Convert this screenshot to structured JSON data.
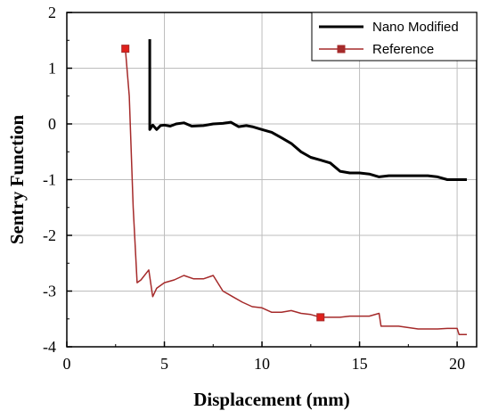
{
  "chart_data": {
    "type": "line",
    "xlabel": "Displacement (mm)",
    "ylabel": "Sentry Function",
    "xlim": [
      0,
      21
    ],
    "ylim": [
      -4,
      2
    ],
    "x_ticks": [
      "0",
      "5",
      "10",
      "15",
      "20"
    ],
    "y_ticks": [
      "2",
      "1",
      "0",
      "-1",
      "-2",
      "-3",
      "-4"
    ],
    "grid": true,
    "legend_position": "top-right",
    "series": [
      {
        "name": "Nano Modified",
        "color": "#000000",
        "x": [
          4.25,
          4.25,
          4.4,
          4.6,
          4.8,
          5.0,
          5.3,
          5.6,
          6.0,
          6.4,
          7.0,
          7.5,
          8.0,
          8.4,
          8.8,
          9.2,
          9.5,
          10.0,
          10.5,
          11.0,
          11.5,
          12.0,
          12.5,
          13.0,
          13.5,
          14.0,
          14.5,
          15.0,
          15.5,
          16.0,
          16.5,
          17.0,
          17.5,
          18.0,
          18.5,
          19.0,
          19.5,
          20.0,
          20.5
        ],
        "y": [
          1.52,
          -0.1,
          -0.02,
          -0.1,
          -0.03,
          -0.02,
          -0.04,
          0.0,
          0.02,
          -0.04,
          -0.03,
          0.0,
          0.01,
          0.03,
          -0.05,
          -0.03,
          -0.05,
          -0.1,
          -0.15,
          -0.25,
          -0.35,
          -0.5,
          -0.6,
          -0.65,
          -0.7,
          -0.85,
          -0.88,
          -0.88,
          -0.9,
          -0.95,
          -0.93,
          -0.93,
          -0.93,
          -0.93,
          -0.93,
          -0.95,
          -1.0,
          -1.0,
          -1.0
        ]
      },
      {
        "name": "Reference",
        "color": "#a52a2a",
        "marker": "square",
        "x": [
          3.0,
          3.2,
          3.4,
          3.6,
          3.8,
          4.2,
          4.4,
          4.6,
          5.0,
          5.5,
          6.0,
          6.5,
          7.0,
          7.5,
          8.0,
          8.5,
          9.0,
          9.5,
          10.0,
          10.5,
          11.0,
          11.5,
          12.0,
          12.5,
          13.0,
          13.5,
          14.0,
          14.5,
          15.0,
          15.5,
          16.0,
          16.1,
          17.0,
          18.0,
          19.0,
          19.5,
          20.0,
          20.1,
          20.5
        ],
        "y": [
          1.35,
          0.5,
          -1.5,
          -2.85,
          -2.8,
          -2.62,
          -3.1,
          -2.95,
          -2.85,
          -2.8,
          -2.72,
          -2.78,
          -2.78,
          -2.72,
          -3.0,
          -3.1,
          -3.2,
          -3.28,
          -3.3,
          -3.38,
          -3.38,
          -3.35,
          -3.4,
          -3.42,
          -3.47,
          -3.47,
          -3.47,
          -3.45,
          -3.45,
          -3.45,
          -3.4,
          -3.63,
          -3.63,
          -3.68,
          -3.68,
          -3.67,
          -3.67,
          -3.78,
          -3.78
        ]
      }
    ]
  }
}
